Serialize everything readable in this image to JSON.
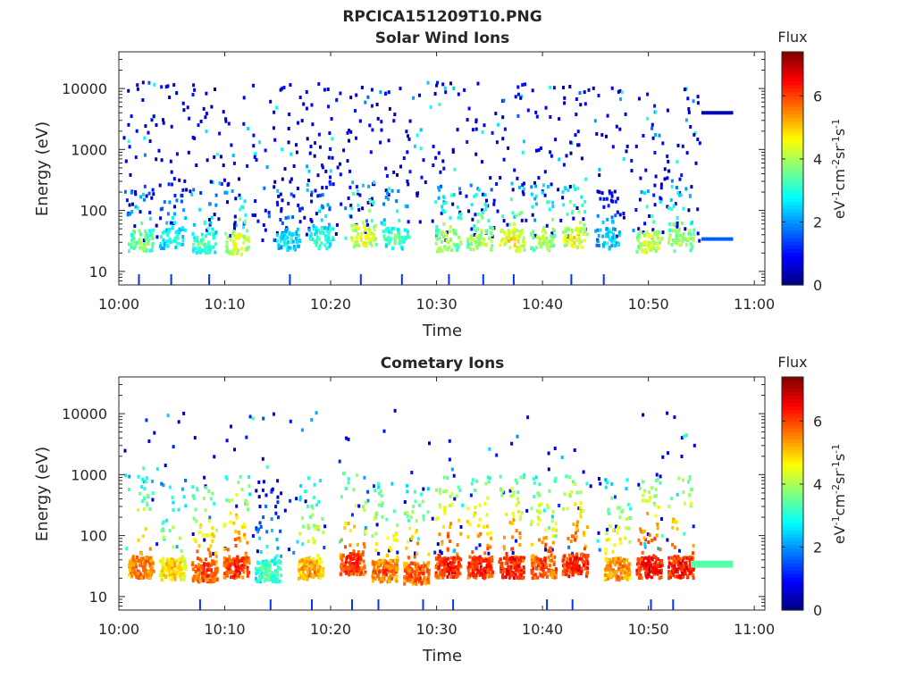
{
  "figure": {
    "title": "RPCICA151209T10.PNG"
  },
  "chart_data": [
    {
      "type": "heatmap",
      "title": "Solar Wind Ions",
      "xlabel": "Time",
      "ylabel": "Energy (eV)",
      "x_ticks": [
        "10:00",
        "10:10",
        "10:20",
        "10:30",
        "10:40",
        "10:50",
        "11:00"
      ],
      "y_ticks": [
        "10",
        "100",
        "1000",
        "10000"
      ],
      "xlim": [
        "10:00",
        "11:01"
      ],
      "ylim": [
        6,
        40000
      ],
      "yscale": "log",
      "colorbar": {
        "title": "Flux",
        "label": "eV-1cm-2sr-1s-1",
        "ticks": [
          "0",
          "2",
          "4",
          "6"
        ],
        "range": [
          0,
          7.4
        ],
        "colormap": "jet"
      },
      "grid": false,
      "ridges": [
        {
          "t": "10:02",
          "e": 32,
          "flux": 3.8
        },
        {
          "t": "10:05",
          "e": 35,
          "flux": 3.2
        },
        {
          "t": "10:08",
          "e": 30,
          "flux": 3.6
        },
        {
          "t": "10:11",
          "e": 28,
          "flux": 4.6
        },
        {
          "t": "10:16",
          "e": 32,
          "flux": 2.8
        },
        {
          "t": "10:19",
          "e": 35,
          "flux": 3.3
        },
        {
          "t": "10:23",
          "e": 38,
          "flux": 4.6
        },
        {
          "t": "10:26",
          "e": 34,
          "flux": 3.5
        },
        {
          "t": "10:31",
          "e": 32,
          "flux": 4.3
        },
        {
          "t": "10:34",
          "e": 34,
          "flux": 4.3
        },
        {
          "t": "10:37",
          "e": 32,
          "flux": 4.8
        },
        {
          "t": "10:40",
          "e": 33,
          "flux": 4.3
        },
        {
          "t": "10:43",
          "e": 36,
          "flux": 4.7
        },
        {
          "t": "10:46",
          "e": 34,
          "flux": 2.8
        },
        {
          "t": "10:50",
          "e": 30,
          "flux": 4.5
        },
        {
          "t": "10:53",
          "e": 32,
          "flux": 4.2
        }
      ],
      "trailing_bands": [
        {
          "t_start": "10:55",
          "t_end": "10:58",
          "e": 4000,
          "flux": 0.4
        },
        {
          "t_start": "10:55",
          "t_end": "10:58",
          "e": 34,
          "flux": 1.6
        }
      ]
    },
    {
      "type": "heatmap",
      "title": "Cometary Ions",
      "xlabel": "Time",
      "ylabel": "Energy (eV)",
      "x_ticks": [
        "10:00",
        "10:10",
        "10:20",
        "10:30",
        "10:40",
        "10:50",
        "11:00"
      ],
      "y_ticks": [
        "10",
        "100",
        "1000",
        "10000"
      ],
      "xlim": [
        "10:00",
        "11:01"
      ],
      "ylim": [
        6,
        40000
      ],
      "yscale": "log",
      "colorbar": {
        "title": "Flux",
        "label": "eV-1cm-2sr-1s-1",
        "ticks": [
          "0",
          "2",
          "4",
          "6"
        ],
        "range": [
          0,
          7.4
        ],
        "colormap": "jet"
      },
      "grid": false,
      "ridges": [
        {
          "t": "10:02",
          "e": 30,
          "flux": 6.0
        },
        {
          "t": "10:05",
          "e": 28,
          "flux": 5.2
        },
        {
          "t": "10:08",
          "e": 26,
          "flux": 6.2
        },
        {
          "t": "10:11",
          "e": 30,
          "flux": 6.4
        },
        {
          "t": "10:14",
          "e": 26,
          "flux": 3.6
        },
        {
          "t": "10:18",
          "e": 28,
          "flux": 5.6
        },
        {
          "t": "10:22",
          "e": 34,
          "flux": 6.4
        },
        {
          "t": "10:25",
          "e": 26,
          "flux": 6.0
        },
        {
          "t": "10:28",
          "e": 24,
          "flux": 6.1
        },
        {
          "t": "10:31",
          "e": 30,
          "flux": 6.6
        },
        {
          "t": "10:34",
          "e": 30,
          "flux": 6.6
        },
        {
          "t": "10:37",
          "e": 30,
          "flux": 6.6
        },
        {
          "t": "10:40",
          "e": 30,
          "flux": 6.3
        },
        {
          "t": "10:43",
          "e": 32,
          "flux": 6.6
        },
        {
          "t": "10:47",
          "e": 28,
          "flux": 5.8
        },
        {
          "t": "10:50",
          "e": 30,
          "flux": 6.8
        },
        {
          "t": "10:53",
          "e": 30,
          "flux": 6.6
        }
      ],
      "trailing_bands": [
        {
          "t_start": "10:54",
          "t_end": "10:58",
          "e": 34,
          "flux": 3.4
        }
      ]
    }
  ]
}
